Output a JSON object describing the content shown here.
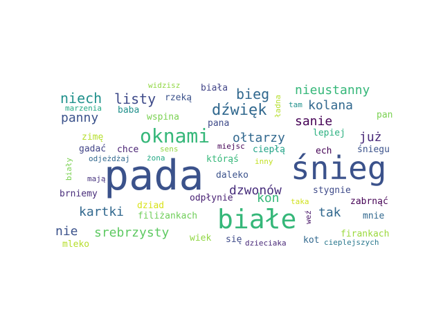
{
  "words": [
    {
      "text": "pada",
      "color": "#3b528b"
    },
    {
      "text": "śnieg",
      "color": "#3b528b"
    },
    {
      "text": "białe",
      "color": "#35b779"
    },
    {
      "text": "oknami",
      "color": "#35b779"
    },
    {
      "text": "dźwięk",
      "color": "#31688e"
    },
    {
      "text": "bieg",
      "color": "#31688e"
    },
    {
      "text": "listy",
      "color": "#3e4a89"
    },
    {
      "text": "niech",
      "color": "#21918c"
    },
    {
      "text": "nieustanny",
      "color": "#35b779"
    },
    {
      "text": "kolana",
      "color": "#31688e"
    },
    {
      "text": "panny",
      "color": "#3b528b"
    },
    {
      "text": "sanie",
      "color": "#440154"
    },
    {
      "text": "ołtarzy",
      "color": "#31688e"
    },
    {
      "text": "już",
      "color": "#482878"
    },
    {
      "text": "dzwonów",
      "color": "#472d7b"
    },
    {
      "text": "kon",
      "color": "#35b779"
    },
    {
      "text": "tak",
      "color": "#31688e"
    },
    {
      "text": "kartki",
      "color": "#31688e"
    },
    {
      "text": "srebrzysty",
      "color": "#5ec962"
    },
    {
      "text": "nie",
      "color": "#3b528b"
    },
    {
      "text": "biała",
      "color": "#414487"
    },
    {
      "text": "rzeką",
      "color": "#3b528b"
    },
    {
      "text": "widzisz",
      "color": "#90d743"
    },
    {
      "text": "marzenia",
      "color": "#22a884"
    },
    {
      "text": "baba",
      "color": "#21918c"
    },
    {
      "text": "wspina",
      "color": "#7ad151"
    },
    {
      "text": "pana",
      "color": "#3e4a89"
    },
    {
      "text": "tam",
      "color": "#21918c"
    },
    {
      "text": "pan",
      "color": "#7ad151"
    },
    {
      "text": "ładna",
      "color": "#b5de2b"
    },
    {
      "text": "lepiej",
      "color": "#2ab07f"
    },
    {
      "text": "zimę",
      "color": "#b5de2b"
    },
    {
      "text": "gadać",
      "color": "#414487"
    },
    {
      "text": "chce",
      "color": "#482173"
    },
    {
      "text": "sens",
      "color": "#90d743"
    },
    {
      "text": "miejsc",
      "color": "#440154"
    },
    {
      "text": "ciepłą",
      "color": "#20a386"
    },
    {
      "text": "ech",
      "color": "#440154"
    },
    {
      "text": "śniegu",
      "color": "#3b528b"
    },
    {
      "text": "odjeżdżaj",
      "color": "#31688e"
    },
    {
      "text": "żona",
      "color": "#22a884"
    },
    {
      "text": "którąś",
      "color": "#35b779"
    },
    {
      "text": "inny",
      "color": "#c2df23"
    },
    {
      "text": "daleko",
      "color": "#3b528b"
    },
    {
      "text": "biały",
      "color": "#7ad151"
    },
    {
      "text": "mają",
      "color": "#46327e"
    },
    {
      "text": "stygnie",
      "color": "#3e4a89"
    },
    {
      "text": "brniemy",
      "color": "#472c7a"
    },
    {
      "text": "odpłynie",
      "color": "#482173"
    },
    {
      "text": "taka",
      "color": "#d0e11c"
    },
    {
      "text": "zabrnąć",
      "color": "#440154"
    },
    {
      "text": "dziad",
      "color": "#d8e219"
    },
    {
      "text": "filiżankach",
      "color": "#6ece58"
    },
    {
      "text": "weź",
      "color": "#481668"
    },
    {
      "text": "mnie",
      "color": "#31688e"
    },
    {
      "text": "firankach",
      "color": "#9bd93c"
    },
    {
      "text": "wiek",
      "color": "#90d743"
    },
    {
      "text": "się",
      "color": "#3e4a89"
    },
    {
      "text": "kot",
      "color": "#31688e"
    },
    {
      "text": "mleko",
      "color": "#b5de2b"
    },
    {
      "text": "dzieciaka",
      "color": "#482878"
    },
    {
      "text": "cieplejszych",
      "color": "#2a788e"
    }
  ]
}
